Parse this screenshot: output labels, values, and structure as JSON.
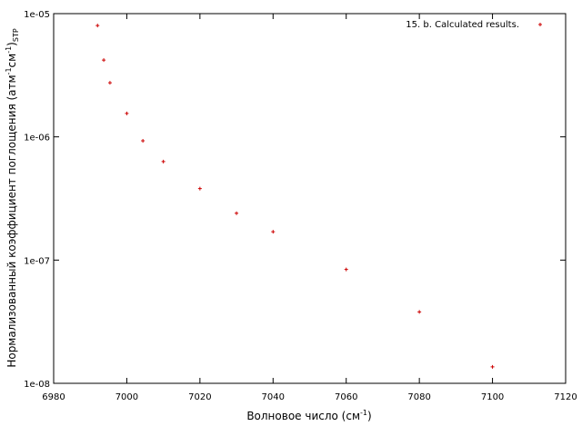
{
  "chart_data": {
    "type": "scatter",
    "xlabel": {
      "text": "Волновое число (см",
      "sup": "-1",
      "close": ")"
    },
    "ylabel": {
      "text": "Нормализованный коэффициент поглощения (атм",
      "sup1": "-1",
      "mid": "см",
      "sup2": "-1",
      "close": ")",
      "sub": "STP"
    },
    "series": [
      {
        "name": "15. b. Calculated results.",
        "color": "#cc0000",
        "x": [
          6992,
          6993.7,
          6995.4,
          7000,
          7004.4,
          7010,
          7020,
          7030,
          7040,
          7060,
          7080,
          7100
        ],
        "values": [
          8e-06,
          4.2e-06,
          2.75e-06,
          1.55e-06,
          9.3e-07,
          6.3e-07,
          3.8e-07,
          2.4e-07,
          1.7e-07,
          8.4e-08,
          3.8e-08,
          1.36e-08
        ]
      }
    ],
    "xlim": [
      6980,
      7120
    ],
    "xticks": [
      6980,
      7000,
      7020,
      7040,
      7060,
      7080,
      7100,
      7120
    ],
    "ylim": [
      1e-08,
      1e-05
    ],
    "yticks": [
      {
        "value": 1e-08,
        "label": "1e-08"
      },
      {
        "value": 1e-07,
        "label": "1e-07"
      },
      {
        "value": 1e-06,
        "label": "1e-06"
      },
      {
        "value": 1e-05,
        "label": "1e-05"
      }
    ],
    "yscale": "log",
    "legend": "upper right"
  }
}
